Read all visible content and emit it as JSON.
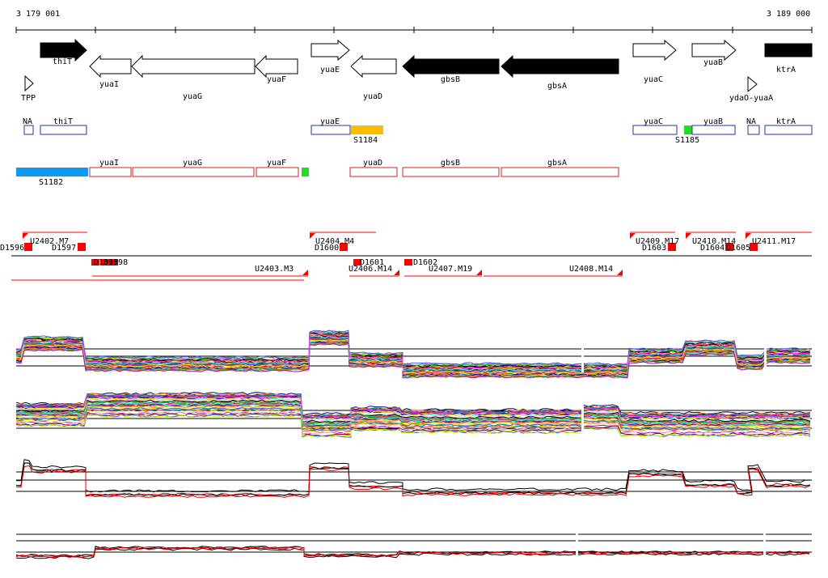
{
  "coords": {
    "start": "3 179 001",
    "end": "3 189 000"
  },
  "genes": [
    {
      "label": "thiT",
      "dir": "R",
      "filled": true
    },
    {
      "label": "yuaI",
      "dir": "L",
      "filled": false
    },
    {
      "label": "yuaG",
      "dir": "L",
      "filled": false
    },
    {
      "label": "yuaF",
      "dir": "L",
      "filled": false
    },
    {
      "label": "yuaE",
      "dir": "R",
      "filled": false
    },
    {
      "label": "yuaD",
      "dir": "L",
      "filled": false
    },
    {
      "label": "gbsB",
      "dir": "L",
      "filled": true
    },
    {
      "label": "gbsA",
      "dir": "L",
      "filled": true
    },
    {
      "label": "yuaC",
      "dir": "R",
      "filled": false
    },
    {
      "label": "yuaB",
      "dir": "R",
      "filled": false
    },
    {
      "label": "ktrA",
      "dir": "R",
      "filled": true
    }
  ],
  "terminators": [
    {
      "label": "TPP"
    },
    {
      "label": "ydaO-yuaA"
    }
  ],
  "operon_row1": [
    {
      "label": "NA"
    },
    {
      "label": "thiT"
    },
    {
      "label": "yuaE"
    },
    {
      "label": "S1184"
    },
    {
      "label": "yuaC"
    },
    {
      "label": "S1185"
    },
    {
      "label": "yuaB"
    },
    {
      "label": "NA"
    },
    {
      "label": "ktrA"
    }
  ],
  "operon_row2": [
    {
      "label": "S1182"
    },
    {
      "label": "yuaI"
    },
    {
      "label": "yuaG"
    },
    {
      "label": "yuaF"
    },
    {
      "label": "yuaD"
    },
    {
      "label": "gbsB"
    },
    {
      "label": "gbsA"
    }
  ],
  "transcripts": [
    {
      "label": "U2402.M7"
    },
    {
      "label": "D1596"
    },
    {
      "label": "D1597"
    },
    {
      "label": "D1598"
    },
    {
      "label": "D1599"
    },
    {
      "label": "U2403.M3"
    },
    {
      "label": "U2404.M4"
    },
    {
      "label": "D1600"
    },
    {
      "label": "D1601"
    },
    {
      "label": "U2406.M14"
    },
    {
      "label": "D1602"
    },
    {
      "label": "U2407.M19"
    },
    {
      "label": "U2408.M14"
    },
    {
      "label": "U2409.M17"
    },
    {
      "label": "D1603"
    },
    {
      "label": "U2410.M14"
    },
    {
      "label": "D1604"
    },
    {
      "label": "D1605"
    },
    {
      "label": "U2411.M17"
    }
  ],
  "colors": {
    "operon_blue": "#2233aa",
    "operon_red": "#cc2222",
    "sig_blue": "#1199ee",
    "sig_orange": "#ffbb00",
    "sig_green": "#22dd22",
    "transcript": "#ff0000"
  }
}
